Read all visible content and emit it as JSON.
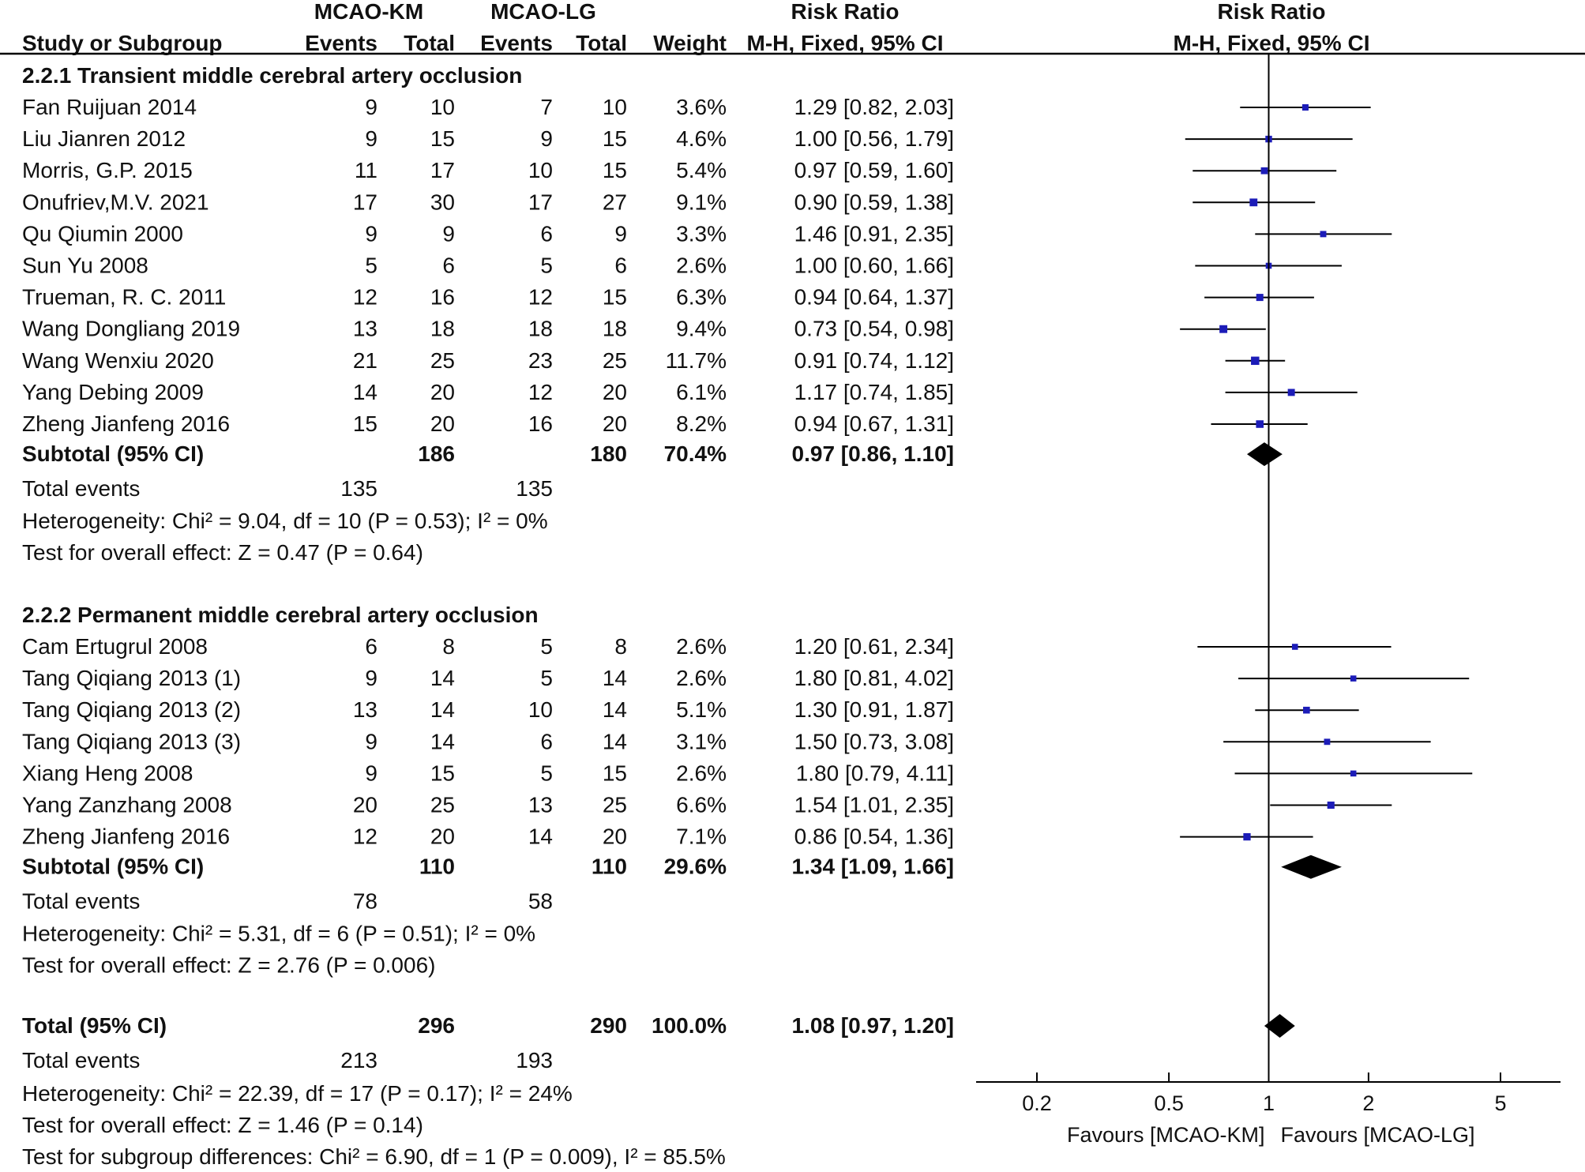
{
  "header": {
    "group1": "MCAO-KM",
    "group2": "MCAO-LG",
    "effect_title": "Risk Ratio",
    "plot_title": "Risk Ratio",
    "col_study": "Study or Subgroup",
    "col_events1": "Events",
    "col_total1": "Total",
    "col_events2": "Events",
    "col_total2": "Total",
    "col_weight": "Weight",
    "col_ci": "M-H, Fixed, 95% CI",
    "plot_ci": "M-H, Fixed, 95% CI"
  },
  "subgroups": [
    {
      "title": "2.2.1 Transient middle cerebral artery occlusion",
      "studies": [
        {
          "name": "Fan Ruijuan 2014",
          "e1": "9",
          "n1": "10",
          "e2": "7",
          "n2": "10",
          "weight": "3.6%",
          "ci_text": "1.29 [0.82, 2.03]",
          "rr": 1.29,
          "lo": 0.82,
          "hi": 2.03,
          "w": 3.6
        },
        {
          "name": "Liu Jianren 2012",
          "e1": "9",
          "n1": "15",
          "e2": "9",
          "n2": "15",
          "weight": "4.6%",
          "ci_text": "1.00 [0.56, 1.79]",
          "rr": 1.0,
          "lo": 0.56,
          "hi": 1.79,
          "w": 4.6
        },
        {
          "name": "Morris, G.P. 2015",
          "e1": "11",
          "n1": "17",
          "e2": "10",
          "n2": "15",
          "weight": "5.4%",
          "ci_text": "0.97 [0.59, 1.60]",
          "rr": 0.97,
          "lo": 0.59,
          "hi": 1.6,
          "w": 5.4
        },
        {
          "name": "Onufriev,M.V. 2021",
          "e1": "17",
          "n1": "30",
          "e2": "17",
          "n2": "27",
          "weight": "9.1%",
          "ci_text": "0.90 [0.59, 1.38]",
          "rr": 0.9,
          "lo": 0.59,
          "hi": 1.38,
          "w": 9.1
        },
        {
          "name": "Qu Qiumin 2000",
          "e1": "9",
          "n1": "9",
          "e2": "6",
          "n2": "9",
          "weight": "3.3%",
          "ci_text": "1.46 [0.91, 2.35]",
          "rr": 1.46,
          "lo": 0.91,
          "hi": 2.35,
          "w": 3.3
        },
        {
          "name": "Sun Yu 2008",
          "e1": "5",
          "n1": "6",
          "e2": "5",
          "n2": "6",
          "weight": "2.6%",
          "ci_text": "1.00 [0.60, 1.66]",
          "rr": 1.0,
          "lo": 0.6,
          "hi": 1.66,
          "w": 2.6
        },
        {
          "name": "Trueman, R. C. 2011",
          "e1": "12",
          "n1": "16",
          "e2": "12",
          "n2": "15",
          "weight": "6.3%",
          "ci_text": "0.94 [0.64, 1.37]",
          "rr": 0.94,
          "lo": 0.64,
          "hi": 1.37,
          "w": 6.3
        },
        {
          "name": "Wang Dongliang 2019",
          "e1": "13",
          "n1": "18",
          "e2": "18",
          "n2": "18",
          "weight": "9.4%",
          "ci_text": "0.73 [0.54, 0.98]",
          "rr": 0.73,
          "lo": 0.54,
          "hi": 0.98,
          "w": 9.4
        },
        {
          "name": "Wang Wenxiu 2020",
          "e1": "21",
          "n1": "25",
          "e2": "23",
          "n2": "25",
          "weight": "11.7%",
          "ci_text": "0.91 [0.74, 1.12]",
          "rr": 0.91,
          "lo": 0.74,
          "hi": 1.12,
          "w": 11.7
        },
        {
          "name": "Yang Debing 2009",
          "e1": "14",
          "n1": "20",
          "e2": "12",
          "n2": "20",
          "weight": "6.1%",
          "ci_text": "1.17 [0.74, 1.85]",
          "rr": 1.17,
          "lo": 0.74,
          "hi": 1.85,
          "w": 6.1
        },
        {
          "name": "Zheng Jianfeng 2016",
          "e1": "15",
          "n1": "20",
          "e2": "16",
          "n2": "20",
          "weight": "8.2%",
          "ci_text": "0.94 [0.67, 1.31]",
          "rr": 0.94,
          "lo": 0.67,
          "hi": 1.31,
          "w": 8.2
        }
      ],
      "subtotal": {
        "label": "Subtotal (95% CI)",
        "n1": "186",
        "n2": "180",
        "weight": "70.4%",
        "ci_text": "0.97 [0.86, 1.10]",
        "rr": 0.97,
        "lo": 0.86,
        "hi": 1.1
      },
      "total_events": {
        "label": "Total events",
        "e1": "135",
        "e2": "135"
      },
      "heterogeneity": "Heterogeneity: Chi² = 9.04, df = 10 (P = 0.53); I² = 0%",
      "overall_effect": "Test for overall effect: Z = 0.47 (P = 0.64)"
    },
    {
      "title": "2.2.2 Permanent middle cerebral artery occlusion",
      "studies": [
        {
          "name": "Cam Ertugrul 2008",
          "e1": "6",
          "n1": "8",
          "e2": "5",
          "n2": "8",
          "weight": "2.6%",
          "ci_text": "1.20 [0.61, 2.34]",
          "rr": 1.2,
          "lo": 0.61,
          "hi": 2.34,
          "w": 2.6
        },
        {
          "name": "Tang Qiqiang 2013 (1)",
          "e1": "9",
          "n1": "14",
          "e2": "5",
          "n2": "14",
          "weight": "2.6%",
          "ci_text": "1.80 [0.81, 4.02]",
          "rr": 1.8,
          "lo": 0.81,
          "hi": 4.02,
          "w": 2.6
        },
        {
          "name": "Tang Qiqiang 2013 (2)",
          "e1": "13",
          "n1": "14",
          "e2": "10",
          "n2": "14",
          "weight": "5.1%",
          "ci_text": "1.30 [0.91, 1.87]",
          "rr": 1.3,
          "lo": 0.91,
          "hi": 1.87,
          "w": 5.1
        },
        {
          "name": "Tang Qiqiang 2013 (3)",
          "e1": "9",
          "n1": "14",
          "e2": "6",
          "n2": "14",
          "weight": "3.1%",
          "ci_text": "1.50 [0.73, 3.08]",
          "rr": 1.5,
          "lo": 0.73,
          "hi": 3.08,
          "w": 3.1
        },
        {
          "name": "Xiang Heng 2008",
          "e1": "9",
          "n1": "15",
          "e2": "5",
          "n2": "15",
          "weight": "2.6%",
          "ci_text": "1.80 [0.79, 4.11]",
          "rr": 1.8,
          "lo": 0.79,
          "hi": 4.11,
          "w": 2.6
        },
        {
          "name": "Yang Zanzhang 2008",
          "e1": "20",
          "n1": "25",
          "e2": "13",
          "n2": "25",
          "weight": "6.6%",
          "ci_text": "1.54 [1.01, 2.35]",
          "rr": 1.54,
          "lo": 1.01,
          "hi": 2.35,
          "w": 6.6
        },
        {
          "name": "Zheng Jianfeng 2016",
          "e1": "12",
          "n1": "20",
          "e2": "14",
          "n2": "20",
          "weight": "7.1%",
          "ci_text": "0.86 [0.54, 1.36]",
          "rr": 0.86,
          "lo": 0.54,
          "hi": 1.36,
          "w": 7.1
        }
      ],
      "subtotal": {
        "label": "Subtotal (95% CI)",
        "n1": "110",
        "n2": "110",
        "weight": "29.6%",
        "ci_text": "1.34 [1.09, 1.66]",
        "rr": 1.34,
        "lo": 1.09,
        "hi": 1.66
      },
      "total_events": {
        "label": "Total events",
        "e1": "78",
        "e2": "58"
      },
      "heterogeneity": "Heterogeneity: Chi² = 5.31, df = 6 (P = 0.51); I² = 0%",
      "overall_effect": "Test for overall effect: Z = 2.76 (P = 0.006)"
    }
  ],
  "total": {
    "label": "Total (95% CI)",
    "n1": "296",
    "n2": "290",
    "weight": "100.0%",
    "ci_text": "1.08 [0.97, 1.20]",
    "rr": 1.08,
    "lo": 0.97,
    "hi": 1.2,
    "total_events": {
      "label": "Total events",
      "e1": "213",
      "e2": "193"
    },
    "heterogeneity": "Heterogeneity: Chi² = 22.39, df = 17 (P = 0.17); I² = 24%",
    "overall_effect": "Test for overall effect: Z = 1.46 (P = 0.14)",
    "subgroup_diff": "Test for subgroup differences: Chi² = 6.90, df = 1 (P = 0.009), I² = 85.5%"
  },
  "chart_data": {
    "type": "forest",
    "scale": "log",
    "xlim": [
      0.15,
      7.5
    ],
    "ticks": [
      {
        "value": 0.2,
        "label": "0.2"
      },
      {
        "value": 0.5,
        "label": "0.5"
      },
      {
        "value": 1,
        "label": "1"
      },
      {
        "value": 2,
        "label": "2"
      },
      {
        "value": 5,
        "label": "5"
      }
    ],
    "null_line": 1,
    "favours_left": "Favours [MCAO-KM]",
    "favours_right": "Favours [MCAO-LG]",
    "colors": {
      "study_marker": "#1c1cb8",
      "diamond": "#000000",
      "line": "#000000"
    }
  }
}
